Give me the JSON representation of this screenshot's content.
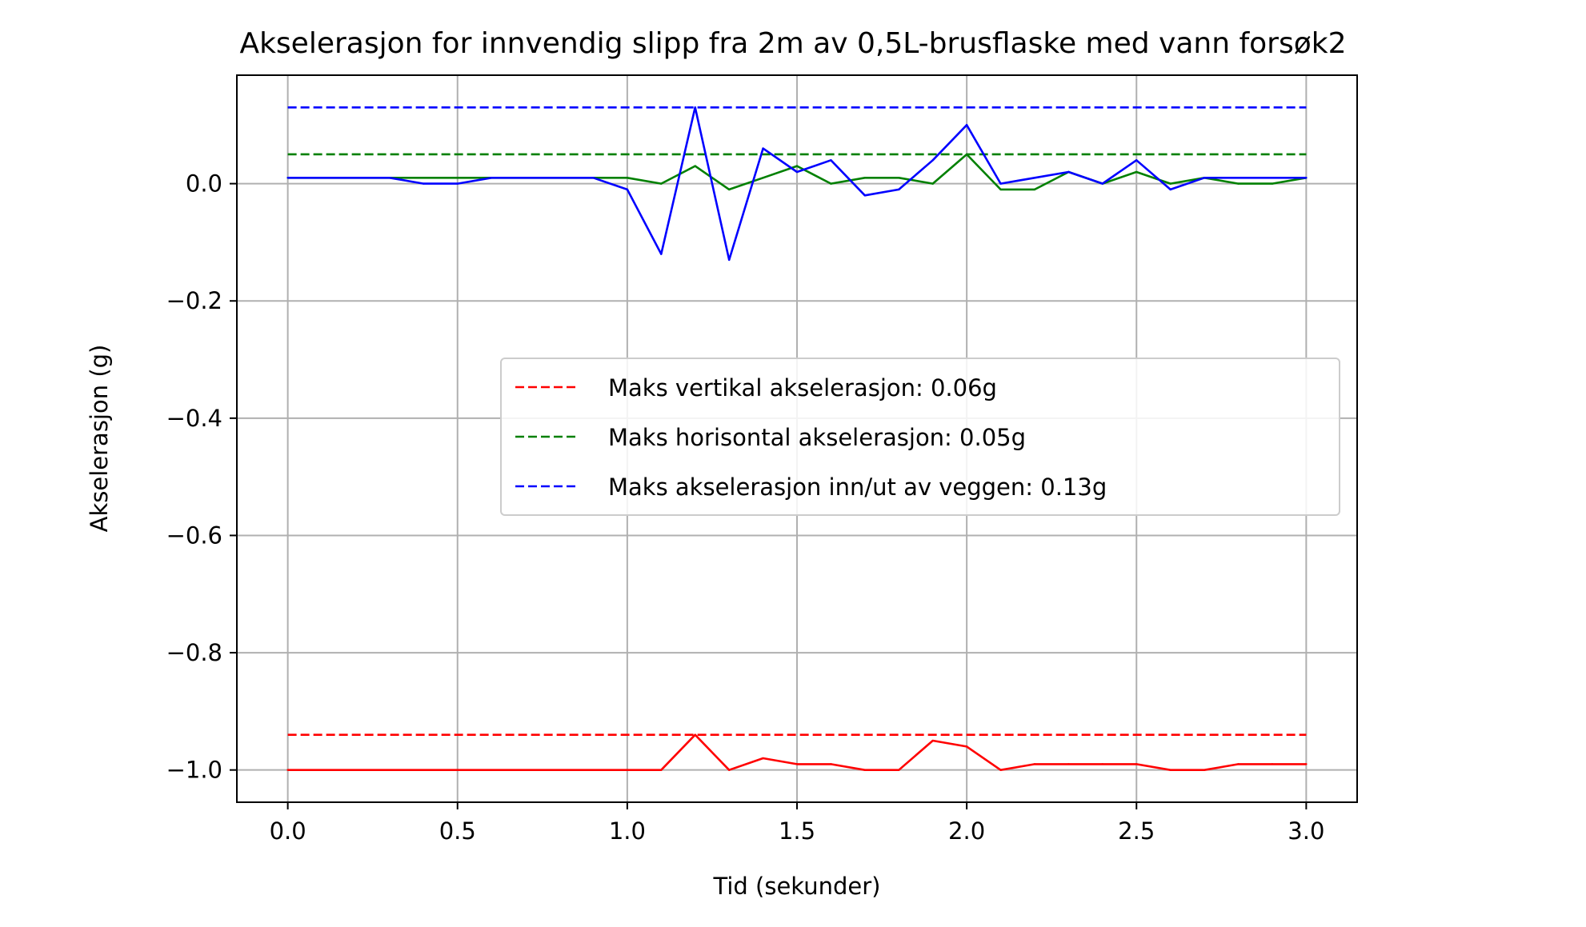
{
  "chart_data": {
    "type": "line",
    "title": "Akselerasjon for innvendig slipp fra 2m av 0,5L-brusflaske med vann forsøk2",
    "xlabel": "Tid (sekunder)",
    "ylabel": "Akselerasjon (g)",
    "xlim": [
      -0.15,
      3.15
    ],
    "ylim": [
      -1.055,
      0.185
    ],
    "grid": true,
    "legend_position": "center-right",
    "xticks": [
      {
        "value": 0.0,
        "label": "0.0"
      },
      {
        "value": 0.5,
        "label": "0.5"
      },
      {
        "value": 1.0,
        "label": "1.0"
      },
      {
        "value": 1.5,
        "label": "1.5"
      },
      {
        "value": 2.0,
        "label": "2.0"
      },
      {
        "value": 2.5,
        "label": "2.5"
      },
      {
        "value": 3.0,
        "label": "3.0"
      }
    ],
    "yticks": [
      {
        "value": 0.0,
        "label": "0.0"
      },
      {
        "value": -0.2,
        "label": "−0.2"
      },
      {
        "value": -0.4,
        "label": "−0.4"
      },
      {
        "value": -0.6,
        "label": "−0.6"
      },
      {
        "value": -0.8,
        "label": "−0.8"
      },
      {
        "value": -1.0,
        "label": "−1.0"
      }
    ],
    "x": [
      0.0,
      0.1,
      0.2,
      0.3,
      0.4,
      0.5,
      0.6,
      0.7,
      0.8,
      0.9,
      1.0,
      1.1,
      1.2,
      1.3,
      1.4,
      1.5,
      1.6,
      1.7,
      1.8,
      1.9,
      2.0,
      2.1,
      2.2,
      2.3,
      2.4,
      2.5,
      2.6,
      2.7,
      2.8,
      2.9,
      3.0
    ],
    "series": [
      {
        "color": "#ff0000",
        "values": [
          -1.0,
          -1.0,
          -1.0,
          -1.0,
          -1.0,
          -1.0,
          -1.0,
          -1.0,
          -1.0,
          -1.0,
          -1.0,
          -1.0,
          -0.94,
          -1.0,
          -0.98,
          -0.99,
          -0.99,
          -1.0,
          -1.0,
          -0.95,
          -0.96,
          -1.0,
          -0.99,
          -0.99,
          -0.99,
          -0.99,
          -1.0,
          -1.0,
          -0.99,
          -0.99,
          -0.99
        ]
      },
      {
        "color": "#008000",
        "values": [
          0.01,
          0.01,
          0.01,
          0.01,
          0.01,
          0.01,
          0.01,
          0.01,
          0.01,
          0.01,
          0.01,
          0.0,
          0.03,
          -0.01,
          0.01,
          0.03,
          0.0,
          0.01,
          0.01,
          0.0,
          0.05,
          -0.01,
          -0.01,
          0.02,
          0.0,
          0.02,
          0.0,
          0.01,
          0.0,
          0.0,
          0.01
        ]
      },
      {
        "color": "#0000ff",
        "values": [
          0.01,
          0.01,
          0.01,
          0.01,
          0.0,
          0.0,
          0.01,
          0.01,
          0.01,
          0.01,
          -0.01,
          -0.12,
          0.13,
          -0.13,
          0.06,
          0.02,
          0.04,
          -0.02,
          -0.01,
          0.04,
          0.1,
          0.0,
          0.01,
          0.02,
          0.0,
          0.04,
          -0.01,
          0.01,
          0.01,
          0.01,
          0.01
        ]
      }
    ],
    "reference_lines": [
      {
        "name": "Maks vertikal akselerasjon: 0.06g",
        "y": -0.94,
        "x_range": [
          0.0,
          3.0
        ],
        "color": "#ff0000",
        "style": "dashed"
      },
      {
        "name": "Maks horisontal akselerasjon: 0.05g",
        "y": 0.05,
        "x_range": [
          0.0,
          3.0
        ],
        "color": "#008000",
        "style": "dashed"
      },
      {
        "name": "Maks akselerasjon inn/ut av veggen: 0.13g",
        "y": 0.13,
        "x_range": [
          0.0,
          3.0
        ],
        "color": "#0000ff",
        "style": "dashed"
      }
    ]
  }
}
